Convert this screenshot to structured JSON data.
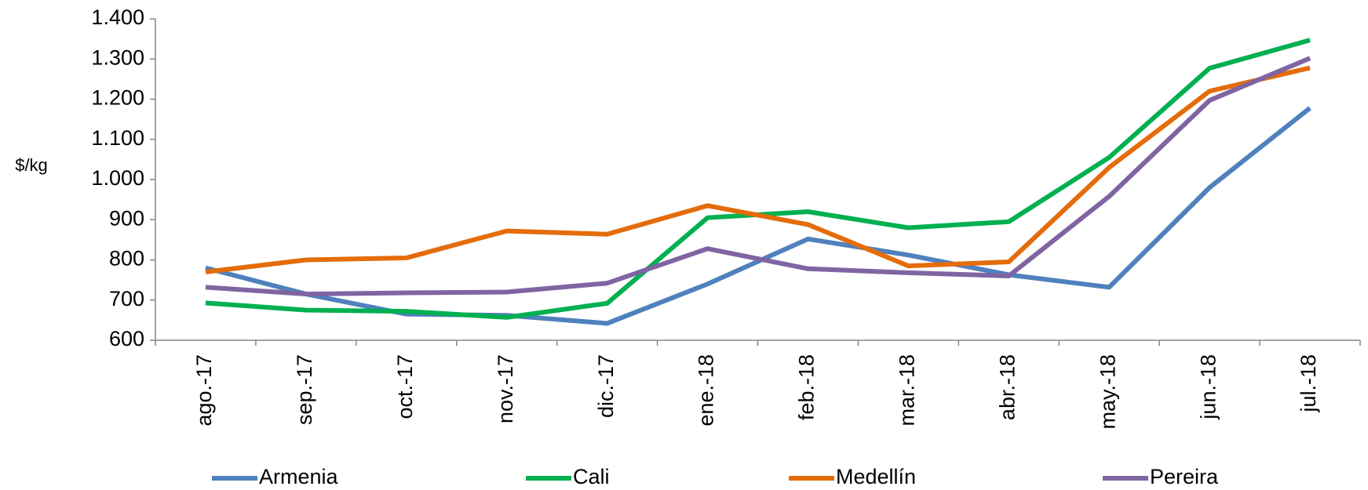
{
  "chart_data": {
    "type": "line",
    "ylabel": "$/kg",
    "categories": [
      "ago.-17",
      "sep.-17",
      "oct.-17",
      "nov.-17",
      "dic.-17",
      "ene.-18",
      "feb.-18",
      "mar.-18",
      "abr.-18",
      "may.-18",
      "jun.-18",
      "jul.-18"
    ],
    "series": [
      {
        "name": "Armenia",
        "color": "#4f81bd",
        "values": [
          780,
          715,
          665,
          662,
          642,
          740,
          852,
          812,
          763,
          732,
          980,
          1178
        ]
      },
      {
        "name": "Cali",
        "color": "#00b050",
        "values": [
          693,
          675,
          672,
          657,
          692,
          905,
          920,
          880,
          895,
          1055,
          1277,
          1347
        ]
      },
      {
        "name": "Medellín",
        "color": "#e46c0a",
        "values": [
          770,
          800,
          805,
          872,
          864,
          935,
          888,
          785,
          795,
          1030,
          1220,
          1278
        ]
      },
      {
        "name": "Pereira",
        "color": "#8064a2",
        "values": [
          732,
          715,
          718,
          720,
          742,
          828,
          778,
          768,
          760,
          958,
          1197,
          1302
        ]
      }
    ],
    "ylim": [
      600,
      1400
    ],
    "yticks": [
      600,
      700,
      800,
      900,
      {
        "value": 1000,
        "label": "1.000"
      },
      {
        "value": 1100,
        "label": "1.100"
      },
      {
        "value": 1200,
        "label": "1.200"
      },
      {
        "value": 1300,
        "label": "1.300"
      },
      {
        "value": 1400,
        "label": "1.400"
      }
    ],
    "grid": false,
    "legend": "bottom"
  }
}
